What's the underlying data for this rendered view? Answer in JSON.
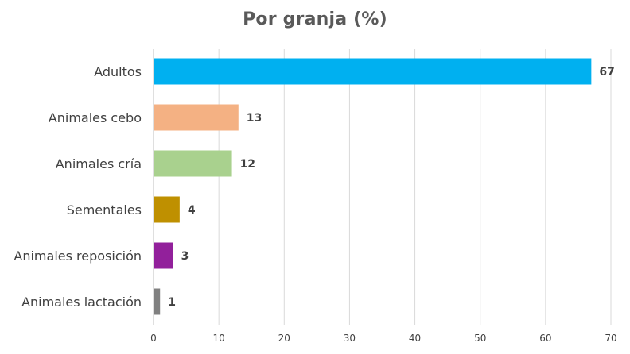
{
  "chart_data": {
    "type": "bar",
    "orientation": "horizontal",
    "title": "Por granja (%)",
    "xlabel": "",
    "ylabel": "",
    "categories": [
      "Adultos",
      "Animales cebo",
      "Animales cría",
      "Sementales",
      "Animales reposición",
      "Animales lactación"
    ],
    "values": [
      67,
      13,
      12,
      4,
      3,
      1
    ],
    "colors": [
      "#00b0f0",
      "#f4b183",
      "#a9d18e",
      "#bf9000",
      "#92209b",
      "#808080"
    ],
    "xlim": [
      0,
      70
    ],
    "xticks": [
      0,
      10,
      20,
      30,
      40,
      50,
      60,
      70
    ],
    "grid": true,
    "legend": "none",
    "data_labels": true
  }
}
